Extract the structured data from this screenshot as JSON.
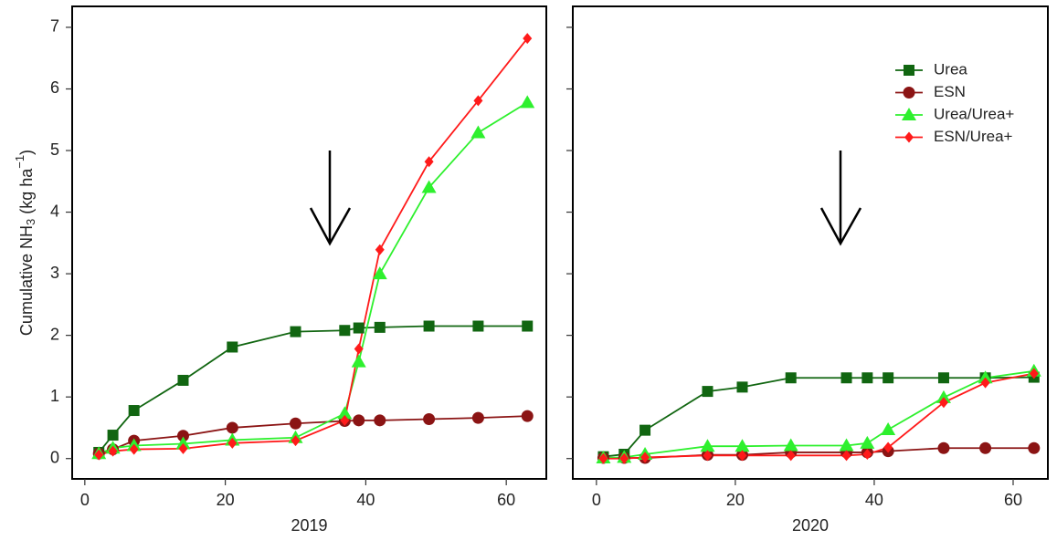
{
  "chart_data": [
    {
      "type": "line",
      "x_label": "2019",
      "y_label": {
        "text": "Cumulative NH",
        "sub": "3",
        "mid": " (kg ha",
        "sup": "−1",
        "end": ")"
      },
      "x": [
        2,
        4,
        7,
        14,
        21,
        30,
        37,
        39,
        42,
        49,
        56,
        63
      ],
      "xlim": [
        -1.8,
        65.7
      ],
      "xticks": [
        0,
        20,
        40,
        60
      ],
      "ylim": [
        -0.33,
        7.34
      ],
      "yticks": [
        0,
        1,
        2,
        3,
        4,
        5,
        6,
        7
      ],
      "series": [
        {
          "color": "#116611",
          "marker": "square",
          "values": [
            0.1,
            0.38,
            0.78,
            1.27,
            1.81,
            2.06,
            2.08,
            2.12,
            2.13,
            2.15,
            2.15,
            2.15
          ]
        },
        {
          "color": "#8b1414",
          "marker": "circle",
          "values": [
            0.08,
            0.15,
            0.29,
            0.37,
            0.5,
            0.57,
            0.61,
            0.62,
            0.62,
            0.64,
            0.66,
            0.69
          ]
        },
        {
          "color": "#2ef02e",
          "marker": "triangle",
          "values": [
            0.08,
            0.17,
            0.21,
            0.24,
            0.3,
            0.34,
            0.73,
            1.57,
            3.0,
            4.4,
            5.29,
            5.78
          ]
        },
        {
          "color": "#ff1a1a",
          "marker": "diamond",
          "values": [
            0.06,
            0.12,
            0.15,
            0.16,
            0.25,
            0.29,
            0.62,
            1.78,
            3.39,
            4.82,
            5.81,
            6.82
          ]
        }
      ]
    },
    {
      "type": "line",
      "x_label": "2020",
      "legend": "upper right",
      "x": [
        1,
        4,
        7,
        16,
        21,
        28,
        36,
        39,
        42,
        50,
        56,
        63
      ],
      "xlim": [
        -3.4,
        65
      ],
      "xticks": [
        0,
        20,
        40,
        60
      ],
      "ylim": [
        -0.33,
        7.34
      ],
      "yticks": [
        0,
        1,
        2,
        3,
        4,
        5,
        6,
        7
      ],
      "series": [
        {
          "name": "Urea",
          "color": "#116611",
          "marker": "square",
          "values": [
            0.03,
            0.07,
            0.46,
            1.09,
            1.16,
            1.31,
            1.31,
            1.31,
            1.31,
            1.31,
            1.31,
            1.32
          ]
        },
        {
          "name": "ESN",
          "color": "#8b1414",
          "marker": "circle",
          "values": [
            0.01,
            0.01,
            0.01,
            0.06,
            0.06,
            0.1,
            0.1,
            0.1,
            0.12,
            0.17,
            0.17,
            0.17
          ]
        },
        {
          "name": "Urea/Urea+",
          "color": "#2ef02e",
          "marker": "triangle",
          "values": [
            0.01,
            0.02,
            0.07,
            0.2,
            0.2,
            0.21,
            0.21,
            0.25,
            0.47,
            0.99,
            1.31,
            1.42
          ]
        },
        {
          "name": "ESN/Urea+",
          "color": "#ff1a1a",
          "marker": "diamond",
          "values": [
            0,
            0,
            0.02,
            0.05,
            0.05,
            0.05,
            0.05,
            0.07,
            0.18,
            0.91,
            1.23,
            1.38
          ]
        }
      ]
    }
  ]
}
